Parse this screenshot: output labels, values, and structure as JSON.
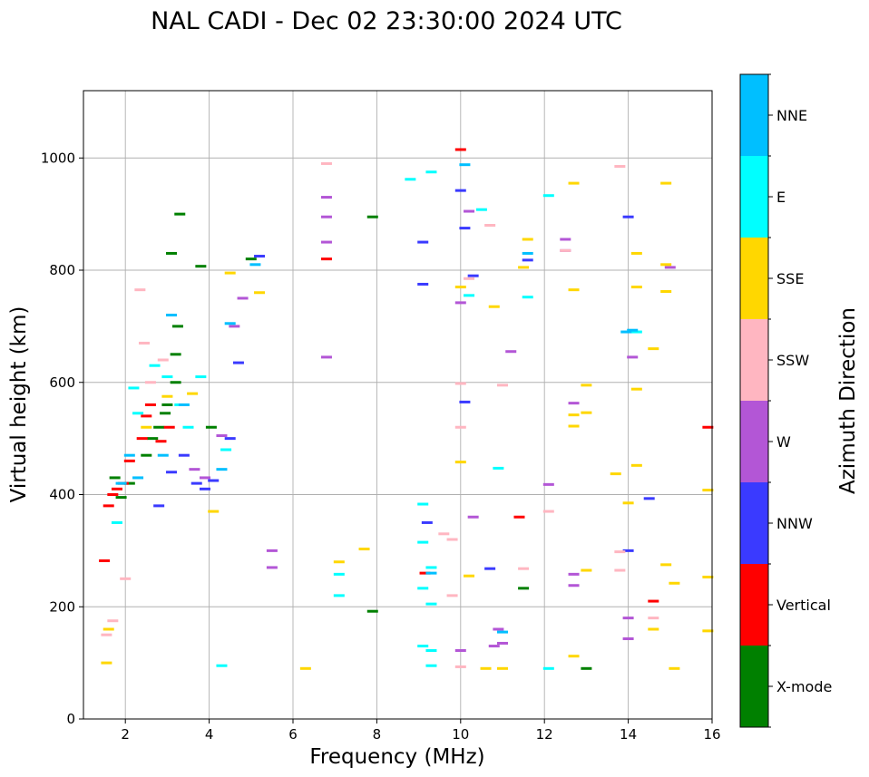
{
  "chart_data": {
    "type": "scatter",
    "title": "NAL CADI - Dec 02 23:30:00 2024 UTC",
    "xlabel": "Frequency (MHz)",
    "ylabel": "Virtual height (km)",
    "xlim": [
      1,
      16
    ],
    "ylim": [
      0,
      1120
    ],
    "xticks": [
      2,
      4,
      6,
      8,
      10,
      12,
      14,
      16
    ],
    "yticks": [
      0,
      200,
      400,
      600,
      800,
      1000
    ],
    "grid": true,
    "colorbar": {
      "label": "Azimuth Direction",
      "categories": [
        "X-mode",
        "Vertical",
        "NNW",
        "W",
        "SSW",
        "SSE",
        "E",
        "NNE"
      ],
      "colors": [
        "#008000",
        "#ff0000",
        "#3a3aff",
        "#b356d6",
        "#ffb6c1",
        "#ffd700",
        "#00ffff",
        "#00bfff"
      ]
    },
    "series": [
      {
        "name": "X-mode",
        "points": [
          [
            1.75,
            430
          ],
          [
            1.9,
            395
          ],
          [
            2.1,
            420
          ],
          [
            2.5,
            470
          ],
          [
            2.65,
            500
          ],
          [
            2.8,
            520
          ],
          [
            2.95,
            545
          ],
          [
            3.0,
            560
          ],
          [
            3.2,
            600
          ],
          [
            3.2,
            650
          ],
          [
            3.25,
            700
          ],
          [
            3.3,
            900
          ],
          [
            3.8,
            807
          ],
          [
            3.1,
            830
          ],
          [
            4.05,
            520
          ],
          [
            5.0,
            820
          ],
          [
            7.9,
            895
          ],
          [
            7.9,
            192
          ],
          [
            11.5,
            233
          ],
          [
            13.0,
            90
          ]
        ]
      },
      {
        "name": "Vertical",
        "points": [
          [
            1.5,
            282
          ],
          [
            1.6,
            380
          ],
          [
            1.7,
            400
          ],
          [
            1.8,
            410
          ],
          [
            1.95,
            420
          ],
          [
            2.1,
            460
          ],
          [
            2.4,
            500
          ],
          [
            2.5,
            540
          ],
          [
            2.6,
            560
          ],
          [
            2.85,
            495
          ],
          [
            3.05,
            520
          ],
          [
            6.8,
            820
          ],
          [
            10.0,
            1015
          ],
          [
            11.4,
            360
          ],
          [
            9.15,
            260
          ],
          [
            14.6,
            210
          ],
          [
            15.9,
            520
          ]
        ]
      },
      {
        "name": "NNW",
        "points": [
          [
            2.8,
            380
          ],
          [
            3.1,
            440
          ],
          [
            3.4,
            470
          ],
          [
            3.7,
            420
          ],
          [
            3.9,
            410
          ],
          [
            4.1,
            425
          ],
          [
            4.5,
            500
          ],
          [
            4.7,
            635
          ],
          [
            5.2,
            825
          ],
          [
            9.1,
            775
          ],
          [
            9.1,
            850
          ],
          [
            10.1,
            875
          ],
          [
            10.0,
            942
          ],
          [
            10.1,
            565
          ],
          [
            10.3,
            790
          ],
          [
            10.7,
            268
          ],
          [
            11.6,
            818
          ],
          [
            14.0,
            895
          ],
          [
            14.0,
            300
          ],
          [
            14.5,
            393
          ],
          [
            9.2,
            350
          ]
        ]
      },
      {
        "name": "W",
        "points": [
          [
            3.65,
            445
          ],
          [
            3.9,
            430
          ],
          [
            4.3,
            505
          ],
          [
            4.6,
            700
          ],
          [
            4.8,
            750
          ],
          [
            5.5,
            300
          ],
          [
            5.5,
            270
          ],
          [
            6.8,
            930
          ],
          [
            6.8,
            895
          ],
          [
            6.8,
            850
          ],
          [
            6.8,
            645
          ],
          [
            10.0,
            742
          ],
          [
            10.2,
            905
          ],
          [
            10.3,
            360
          ],
          [
            11.2,
            655
          ],
          [
            12.1,
            418
          ],
          [
            12.5,
            855
          ],
          [
            12.5,
            835
          ],
          [
            12.7,
            563
          ],
          [
            12.7,
            238
          ],
          [
            12.7,
            258
          ],
          [
            14.0,
            180
          ],
          [
            14.0,
            143
          ],
          [
            14.1,
            645
          ],
          [
            15.0,
            805
          ],
          [
            10.0,
            122
          ],
          [
            10.8,
            130
          ],
          [
            10.9,
            160
          ],
          [
            11.0,
            135
          ]
        ]
      },
      {
        "name": "SSW",
        "points": [
          [
            1.55,
            150
          ],
          [
            1.7,
            175
          ],
          [
            2.0,
            250
          ],
          [
            2.35,
            765
          ],
          [
            2.45,
            670
          ],
          [
            2.6,
            600
          ],
          [
            2.9,
            640
          ],
          [
            6.8,
            990
          ],
          [
            9.6,
            330
          ],
          [
            9.8,
            320
          ],
          [
            10.0,
            598
          ],
          [
            10.0,
            520
          ],
          [
            10.2,
            785
          ],
          [
            10.7,
            880
          ],
          [
            11.0,
            595
          ],
          [
            11.5,
            268
          ],
          [
            12.1,
            370
          ],
          [
            12.5,
            835
          ],
          [
            13.8,
            985
          ],
          [
            13.8,
            265
          ],
          [
            13.8,
            298
          ],
          [
            14.6,
            180
          ],
          [
            10.0,
            93
          ],
          [
            9.8,
            220
          ]
        ]
      },
      {
        "name": "SSE",
        "points": [
          [
            1.6,
            160
          ],
          [
            1.55,
            100
          ],
          [
            2.5,
            520
          ],
          [
            3.0,
            575
          ],
          [
            3.6,
            580
          ],
          [
            4.1,
            370
          ],
          [
            4.5,
            795
          ],
          [
            5.2,
            760
          ],
          [
            6.3,
            90
          ],
          [
            7.7,
            303
          ],
          [
            7.1,
            280
          ],
          [
            10.2,
            255
          ],
          [
            10.0,
            458
          ],
          [
            10.0,
            770
          ],
          [
            10.8,
            735
          ],
          [
            11.6,
            855
          ],
          [
            11.5,
            805
          ],
          [
            12.7,
            955
          ],
          [
            12.7,
            765
          ],
          [
            12.7,
            542
          ],
          [
            12.7,
            522
          ],
          [
            12.7,
            112
          ],
          [
            13.0,
            595
          ],
          [
            13.0,
            546
          ],
          [
            13.0,
            265
          ],
          [
            13.7,
            437
          ],
          [
            14.0,
            385
          ],
          [
            14.2,
            830
          ],
          [
            14.2,
            770
          ],
          [
            14.2,
            588
          ],
          [
            14.2,
            452
          ],
          [
            14.6,
            660
          ],
          [
            14.6,
            160
          ],
          [
            14.9,
            955
          ],
          [
            14.9,
            810
          ],
          [
            14.9,
            762
          ],
          [
            14.9,
            275
          ],
          [
            15.1,
            242
          ],
          [
            15.1,
            90
          ],
          [
            15.9,
            408
          ],
          [
            15.9,
            253
          ],
          [
            15.9,
            157
          ],
          [
            11.0,
            90
          ],
          [
            10.6,
            90
          ]
        ]
      },
      {
        "name": "E",
        "points": [
          [
            1.8,
            350
          ],
          [
            2.2,
            590
          ],
          [
            2.3,
            545
          ],
          [
            2.7,
            630
          ],
          [
            3.0,
            610
          ],
          [
            3.3,
            560
          ],
          [
            3.5,
            520
          ],
          [
            3.8,
            610
          ],
          [
            4.3,
            95
          ],
          [
            4.4,
            480
          ],
          [
            7.1,
            220
          ],
          [
            7.1,
            258
          ],
          [
            8.8,
            962
          ],
          [
            9.1,
            383
          ],
          [
            9.1,
            315
          ],
          [
            9.1,
            130
          ],
          [
            9.1,
            233
          ],
          [
            9.3,
            975
          ],
          [
            9.3,
            122
          ],
          [
            9.3,
            205
          ],
          [
            9.3,
            95
          ],
          [
            10.2,
            755
          ],
          [
            10.5,
            908
          ],
          [
            10.9,
            447
          ],
          [
            11.6,
            752
          ],
          [
            12.1,
            933
          ],
          [
            12.1,
            90
          ],
          [
            14.2,
            690
          ],
          [
            9.3,
            270
          ]
        ]
      },
      {
        "name": "NNE",
        "points": [
          [
            1.9,
            420
          ],
          [
            2.1,
            470
          ],
          [
            2.3,
            430
          ],
          [
            2.9,
            470
          ],
          [
            3.1,
            720
          ],
          [
            3.4,
            560
          ],
          [
            4.3,
            445
          ],
          [
            4.5,
            705
          ],
          [
            5.1,
            810
          ],
          [
            9.3,
            260
          ],
          [
            10.1,
            988
          ],
          [
            11.0,
            155
          ],
          [
            11.6,
            830
          ],
          [
            13.95,
            690
          ],
          [
            14.1,
            693
          ]
        ]
      }
    ]
  }
}
